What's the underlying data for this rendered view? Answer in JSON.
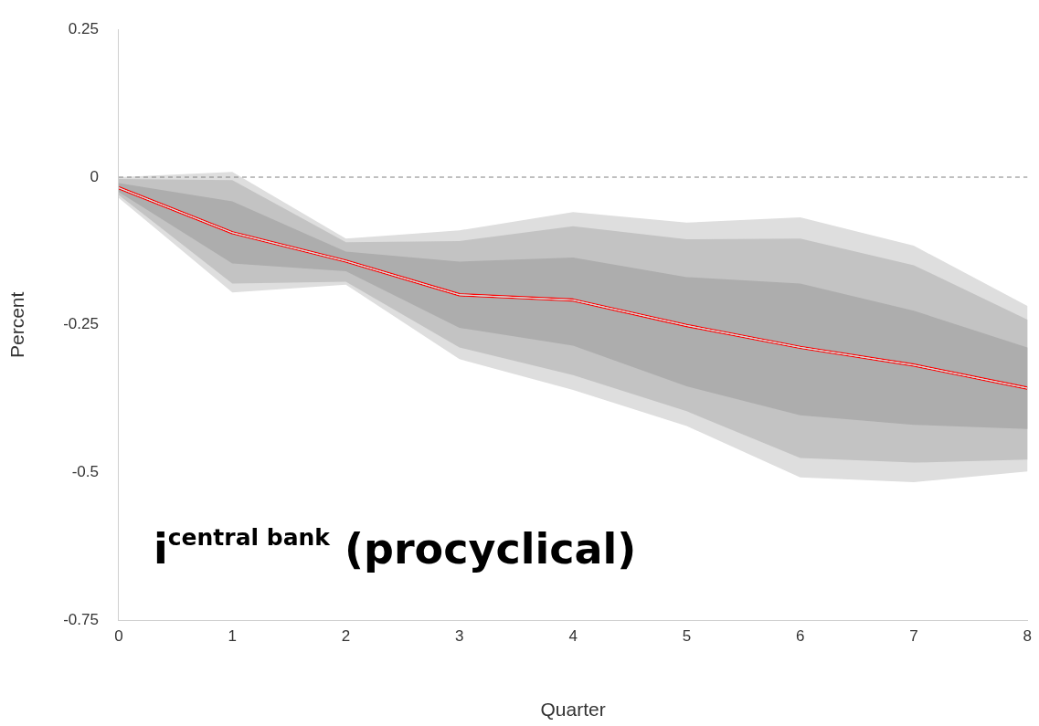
{
  "chart_data": {
    "type": "line",
    "xlabel": "Quarter",
    "ylabel": "Percent",
    "x": [
      0,
      1,
      2,
      3,
      4,
      5,
      6,
      7,
      8
    ],
    "series": [
      {
        "color": "#dedede",
        "values": [
          -0.018,
          -0.094,
          -0.142,
          -0.199,
          -0.208,
          -0.251,
          -0.288,
          -0.318,
          -0.357
        ],
        "lower": [
          -0.035,
          -0.195,
          -0.182,
          -0.308,
          -0.36,
          -0.421,
          -0.508,
          -0.516,
          -0.498
        ],
        "upper": [
          0,
          0.009,
          -0.104,
          -0.09,
          -0.059,
          -0.077,
          -0.068,
          -0.116,
          -0.218
        ]
      },
      {
        "color": "#c3c3c3",
        "values": [
          -0.018,
          -0.094,
          -0.142,
          -0.199,
          -0.208,
          -0.251,
          -0.288,
          -0.318,
          -0.357
        ],
        "lower": [
          -0.03,
          -0.18,
          -0.177,
          -0.288,
          -0.335,
          -0.396,
          -0.475,
          -0.483,
          -0.478
        ],
        "upper": [
          -0.003,
          -0.005,
          -0.11,
          -0.108,
          -0.083,
          -0.105,
          -0.104,
          -0.149,
          -0.241
        ]
      },
      {
        "color": "#adadad",
        "values": [
          -0.018,
          -0.094,
          -0.142,
          -0.199,
          -0.208,
          -0.251,
          -0.288,
          -0.318,
          -0.357
        ],
        "lower": [
          -0.025,
          -0.146,
          -0.159,
          -0.255,
          -0.285,
          -0.354,
          -0.403,
          -0.419,
          -0.426
        ],
        "upper": [
          -0.01,
          -0.041,
          -0.126,
          -0.143,
          -0.136,
          -0.169,
          -0.18,
          -0.226,
          -0.288
        ]
      },
      {
        "color": "#ff0000",
        "values": [
          -0.018,
          -0.094,
          -0.142,
          -0.199,
          -0.208,
          -0.251,
          -0.288,
          -0.318,
          -0.357
        ]
      }
    ],
    "xlim": [
      0,
      8
    ],
    "xticks": [
      0,
      1,
      2,
      3,
      4,
      5,
      6,
      7,
      8
    ],
    "ylim": [
      -0.75,
      0.25
    ],
    "yticks": [
      0.25,
      0,
      -0.25,
      -0.5,
      -0.75
    ],
    "ref_lines": [
      {
        "axis": "y",
        "value": 0,
        "color": "#808080",
        "line_style": "dashed"
      }
    ],
    "annotations": [
      "i$^{central bank}$ (procyclical)"
    ],
    "grid": false,
    "legend": false
  }
}
